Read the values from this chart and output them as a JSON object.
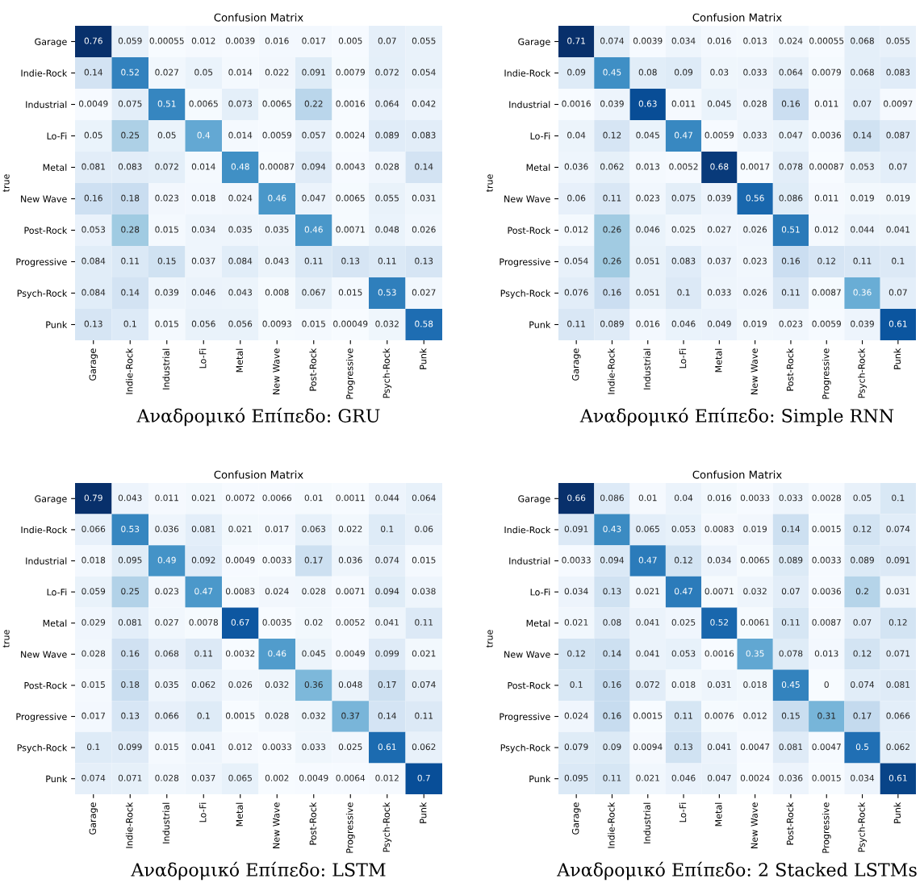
{
  "chart_data": [
    {
      "type": "heatmap",
      "title": "Confusion Matrix",
      "ylabel": "true",
      "annotations": [
        "Αναδρομικό Επίπεδο: GRU"
      ],
      "data_labels": true,
      "categories": [
        "Garage",
        "Indie-Rock",
        "Industrial",
        "Lo-Fi",
        "Metal",
        "New Wave",
        "Post-Rock",
        "Progressive",
        "Psych-Rock",
        "Punk"
      ],
      "y_categories": [
        "Garage",
        "Indie-Rock",
        "Industrial",
        "Lo-Fi",
        "Metal",
        "New Wave",
        "Post-Rock",
        "Progressive",
        "Psych-Rock",
        "Punk"
      ],
      "cells": [
        [
          0.76,
          0.059,
          0.00055,
          0.012,
          0.0039,
          0.016,
          0.017,
          0.005,
          0.07,
          0.055
        ],
        [
          0.14,
          0.52,
          0.027,
          0.05,
          0.014,
          0.022,
          0.091,
          0.0079,
          0.072,
          0.054
        ],
        [
          0.0049,
          0.075,
          0.51,
          0.0065,
          0.073,
          0.0065,
          0.22,
          0.0016,
          0.064,
          0.042
        ],
        [
          0.05,
          0.25,
          0.05,
          0.4,
          0.014,
          0.0059,
          0.057,
          0.0024,
          0.089,
          0.083
        ],
        [
          0.081,
          0.083,
          0.072,
          0.014,
          0.48,
          0.00087,
          0.094,
          0.0043,
          0.028,
          0.14
        ],
        [
          0.16,
          0.18,
          0.023,
          0.018,
          0.024,
          0.46,
          0.047,
          0.0065,
          0.055,
          0.031
        ],
        [
          0.053,
          0.28,
          0.015,
          0.034,
          0.035,
          0.035,
          0.46,
          0.0071,
          0.048,
          0.026
        ],
        [
          0.084,
          0.11,
          0.15,
          0.037,
          0.084,
          0.043,
          0.11,
          0.13,
          0.11,
          0.13
        ],
        [
          0.084,
          0.14,
          0.039,
          0.046,
          0.043,
          0.008,
          0.067,
          0.015,
          0.53,
          0.027
        ],
        [
          0.13,
          0.1,
          0.015,
          0.056,
          0.056,
          0.0093,
          0.015,
          0.00049,
          0.032,
          0.58
        ]
      ]
    },
    {
      "type": "heatmap",
      "title": "Confusion Matrix",
      "ylabel": "true",
      "annotations": [
        "Αναδρομικό Επίπεδο: Simple RNN"
      ],
      "data_labels": true,
      "categories": [
        "Garage",
        "Indie-Rock",
        "Industrial",
        "Lo-Fi",
        "Metal",
        "New Wave",
        "Post-Rock",
        "Progressive",
        "Psych-Rock",
        "Punk"
      ],
      "y_categories": [
        "Garage",
        "Indie-Rock",
        "Industrial",
        "Lo-Fi",
        "Metal",
        "New Wave",
        "Post-Rock",
        "Progressive",
        "Psych-Rock",
        "Punk"
      ],
      "cells": [
        [
          0.71,
          0.074,
          0.0039,
          0.034,
          0.016,
          0.013,
          0.024,
          0.00055,
          0.068,
          0.055
        ],
        [
          0.09,
          0.45,
          0.08,
          0.09,
          0.03,
          0.033,
          0.064,
          0.0079,
          0.068,
          0.083
        ],
        [
          0.0016,
          0.039,
          0.63,
          0.011,
          0.045,
          0.028,
          0.16,
          0.011,
          0.07,
          0.0097
        ],
        [
          0.04,
          0.12,
          0.045,
          0.47,
          0.0059,
          0.033,
          0.047,
          0.0036,
          0.14,
          0.087
        ],
        [
          0.036,
          0.062,
          0.013,
          0.0052,
          0.68,
          0.0017,
          0.078,
          0.00087,
          0.053,
          0.07
        ],
        [
          0.06,
          0.11,
          0.023,
          0.075,
          0.039,
          0.56,
          0.086,
          0.011,
          0.019,
          0.019
        ],
        [
          0.012,
          0.26,
          0.046,
          0.025,
          0.027,
          0.026,
          0.51,
          0.012,
          0.044,
          0.041
        ],
        [
          0.054,
          0.26,
          0.051,
          0.083,
          0.037,
          0.023,
          0.16,
          0.12,
          0.11,
          0.1
        ],
        [
          0.076,
          0.16,
          0.051,
          0.1,
          0.033,
          0.026,
          0.11,
          0.0087,
          0.36,
          0.07
        ],
        [
          0.11,
          0.089,
          0.016,
          0.046,
          0.049,
          0.019,
          0.023,
          0.0059,
          0.039,
          0.61
        ]
      ]
    },
    {
      "type": "heatmap",
      "title": "Confusion Matrix",
      "ylabel": "true",
      "annotations": [
        "Αναδρομικό Επίπεδο: LSTM"
      ],
      "data_labels": true,
      "categories": [
        "Garage",
        "Indie-Rock",
        "Industrial",
        "Lo-Fi",
        "Metal",
        "New Wave",
        "Post-Rock",
        "Progressive",
        "Psych-Rock",
        "Punk"
      ],
      "y_categories": [
        "Garage",
        "Indie-Rock",
        "Industrial",
        "Lo-Fi",
        "Metal",
        "New Wave",
        "Post-Rock",
        "Progressive",
        "Psych-Rock",
        "Punk"
      ],
      "cells": [
        [
          0.79,
          0.043,
          0.011,
          0.021,
          0.0072,
          0.0066,
          0.01,
          0.0011,
          0.044,
          0.064
        ],
        [
          0.066,
          0.53,
          0.036,
          0.081,
          0.021,
          0.017,
          0.063,
          0.022,
          0.1,
          0.06
        ],
        [
          0.018,
          0.095,
          0.49,
          0.092,
          0.0049,
          0.0033,
          0.17,
          0.036,
          0.074,
          0.015
        ],
        [
          0.059,
          0.25,
          0.023,
          0.47,
          0.0083,
          0.024,
          0.028,
          0.0071,
          0.094,
          0.038
        ],
        [
          0.029,
          0.081,
          0.027,
          0.0078,
          0.67,
          0.0035,
          0.02,
          0.0052,
          0.041,
          0.11
        ],
        [
          0.028,
          0.16,
          0.068,
          0.11,
          0.0032,
          0.46,
          0.045,
          0.0049,
          0.099,
          0.021
        ],
        [
          0.015,
          0.18,
          0.035,
          0.062,
          0.026,
          0.032,
          0.36,
          0.048,
          0.17,
          0.074
        ],
        [
          0.017,
          0.13,
          0.066,
          0.1,
          0.0015,
          0.028,
          0.032,
          0.37,
          0.14,
          0.11
        ],
        [
          0.1,
          0.099,
          0.015,
          0.041,
          0.012,
          0.0033,
          0.033,
          0.025,
          0.61,
          0.062
        ],
        [
          0.074,
          0.071,
          0.028,
          0.037,
          0.065,
          0.002,
          0.0049,
          0.0064,
          0.012,
          0.7
        ]
      ]
    },
    {
      "type": "heatmap",
      "title": "Confusion Matrix",
      "ylabel": "true",
      "annotations": [
        "Αναδρομικό Επίπεδο: 2 Stacked LSTMs"
      ],
      "data_labels": true,
      "categories": [
        "Garage",
        "Indie-Rock",
        "Industrial",
        "Lo-Fi",
        "Metal",
        "New Wave",
        "Post-Rock",
        "Progressive",
        "Psych-Rock",
        "Punk"
      ],
      "y_categories": [
        "Garage",
        "Indie-Rock",
        "Industrial",
        "Lo-Fi",
        "Metal",
        "New Wave",
        "Post-Rock",
        "Progressive",
        "Psych-Rock",
        "Punk"
      ],
      "cells": [
        [
          0.66,
          0.086,
          0.01,
          0.04,
          0.016,
          0.0033,
          0.033,
          0.0028,
          0.05,
          0.1
        ],
        [
          0.091,
          0.43,
          0.065,
          0.053,
          0.0083,
          0.019,
          0.14,
          0.0015,
          0.12,
          0.074
        ],
        [
          0.0033,
          0.094,
          0.47,
          0.12,
          0.034,
          0.0065,
          0.089,
          0.0033,
          0.089,
          0.091
        ],
        [
          0.034,
          0.13,
          0.021,
          0.47,
          0.0071,
          0.032,
          0.07,
          0.0036,
          0.2,
          0.031
        ],
        [
          0.021,
          0.08,
          0.041,
          0.025,
          0.52,
          0.0061,
          0.11,
          0.0087,
          0.07,
          0.12
        ],
        [
          0.12,
          0.14,
          0.041,
          0.053,
          0.0016,
          0.35,
          0.078,
          0.013,
          0.12,
          0.071
        ],
        [
          0.1,
          0.16,
          0.072,
          0.018,
          0.031,
          0.018,
          0.45,
          0,
          0.074,
          0.081
        ],
        [
          0.024,
          0.16,
          0.0015,
          0.11,
          0.0076,
          0.012,
          0.15,
          0.31,
          0.17,
          0.066
        ],
        [
          0.079,
          0.09,
          0.0094,
          0.13,
          0.041,
          0.0047,
          0.081,
          0.0047,
          0.5,
          0.062
        ],
        [
          0.095,
          0.11,
          0.021,
          0.046,
          0.047,
          0.0024,
          0.036,
          0.0015,
          0.034,
          0.61
        ]
      ]
    }
  ]
}
